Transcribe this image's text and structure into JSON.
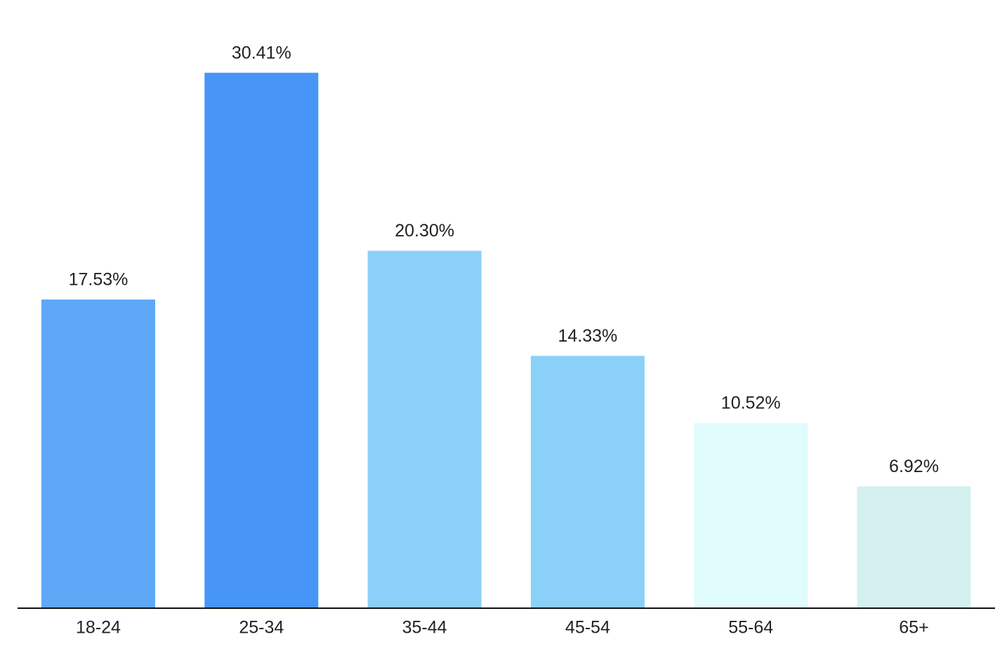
{
  "chart_data": {
    "type": "bar",
    "categories": [
      "18-24",
      "25-34",
      "35-44",
      "45-54",
      "55-64",
      "65+"
    ],
    "values": [
      17.53,
      30.41,
      20.3,
      14.33,
      10.52,
      6.92
    ],
    "value_labels": [
      "17.53%",
      "30.41%",
      "20.30%",
      "14.33%",
      "10.52%",
      "6.92%"
    ],
    "colors": [
      "#5ea8f7",
      "#4796f7",
      "#8ad0f8",
      "#8ad0f8",
      "#e0fcfd",
      "#d4f1f0"
    ]
  }
}
